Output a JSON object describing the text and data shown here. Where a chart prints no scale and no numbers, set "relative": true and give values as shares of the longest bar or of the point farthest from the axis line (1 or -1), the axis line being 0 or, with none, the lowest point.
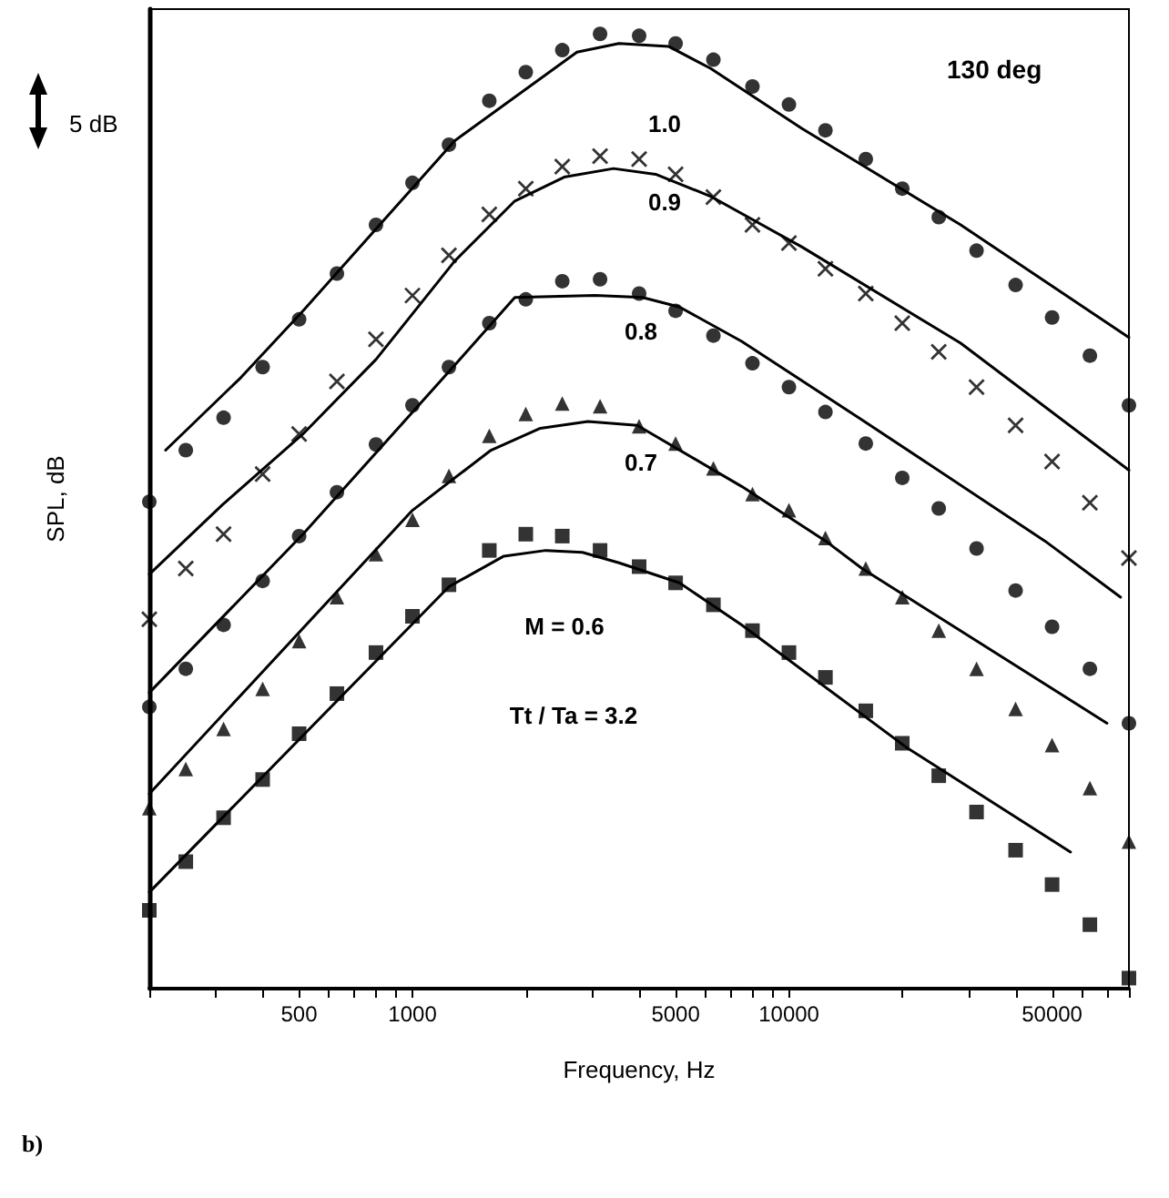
{
  "chart_data": {
    "type": "scatter",
    "xlabel": "Frequency, Hz",
    "ylabel": "SPL, dB",
    "log": "x",
    "relative": true,
    "xlim": [
      200,
      80000
    ],
    "xticks": [
      {
        "value": 200,
        "label": null
      },
      {
        "value": 300,
        "label": null
      },
      {
        "value": 400,
        "label": null
      },
      500,
      {
        "value": 600,
        "label": null
      },
      {
        "value": 700,
        "label": null
      },
      {
        "value": 800,
        "label": null
      },
      {
        "value": 900,
        "label": null
      },
      1000,
      {
        "value": 2000,
        "label": null
      },
      {
        "value": 3000,
        "label": null
      },
      {
        "value": 4000,
        "label": null
      },
      5000,
      {
        "value": 6000,
        "label": null
      },
      {
        "value": 7000,
        "label": null
      },
      {
        "value": 8000,
        "label": null
      },
      {
        "value": 9000,
        "label": null
      },
      10000,
      {
        "value": 20000,
        "label": null
      },
      {
        "value": 30000,
        "label": null
      },
      {
        "value": 40000,
        "label": null
      },
      50000,
      {
        "value": 60000,
        "label": null
      },
      {
        "value": 70000,
        "label": null
      },
      {
        "value": 80000,
        "label": null
      }
    ],
    "x": [
      200,
      250,
      315,
      400,
      500,
      630,
      800,
      1000,
      1250,
      1600,
      2000,
      2500,
      3150,
      4000,
      5000,
      6300,
      8000,
      10000,
      12500,
      16000,
      20000,
      25000,
      31500,
      40000,
      50000,
      63000,
      80000
    ],
    "series": [
      {
        "marker": "circle",
        "color": "#000000",
        "values": [
          0.51,
          0.564,
          0.598,
          0.651,
          0.701,
          0.749,
          0.8,
          0.844,
          0.884,
          0.93,
          0.96,
          0.983,
          1.0,
          0.998,
          0.99,
          0.973,
          0.945,
          0.926,
          0.899,
          0.869,
          0.838,
          0.808,
          0.773,
          0.737,
          0.703,
          0.663,
          0.611
        ]
      },
      {
        "marker": "cross",
        "color": "#000000",
        "values": [
          0.387,
          0.44,
          0.476,
          0.539,
          0.581,
          0.636,
          0.68,
          0.726,
          0.768,
          0.811,
          0.838,
          0.861,
          0.872,
          0.869,
          0.853,
          0.829,
          0.8,
          0.781,
          0.754,
          0.728,
          0.697,
          0.667,
          0.63,
          0.59,
          0.552,
          0.509,
          0.451
        ]
      },
      {
        "marker": "circle",
        "color": "#000000",
        "values": [
          0.295,
          0.335,
          0.381,
          0.427,
          0.474,
          0.52,
          0.57,
          0.611,
          0.651,
          0.697,
          0.722,
          0.741,
          0.743,
          0.728,
          0.71,
          0.684,
          0.655,
          0.63,
          0.604,
          0.571,
          0.535,
          0.503,
          0.461,
          0.417,
          0.379,
          0.335,
          0.278
        ]
      },
      {
        "marker": "triangle",
        "color": "#000000",
        "values": [
          0.189,
          0.23,
          0.272,
          0.314,
          0.364,
          0.41,
          0.455,
          0.491,
          0.537,
          0.579,
          0.602,
          0.613,
          0.61,
          0.589,
          0.571,
          0.545,
          0.518,
          0.501,
          0.472,
          0.44,
          0.41,
          0.375,
          0.335,
          0.293,
          0.255,
          0.21,
          0.154
        ]
      },
      {
        "marker": "square",
        "color": "#000000",
        "values": [
          0.082,
          0.133,
          0.179,
          0.219,
          0.267,
          0.309,
          0.352,
          0.39,
          0.423,
          0.459,
          0.476,
          0.474,
          0.459,
          0.442,
          0.425,
          0.402,
          0.375,
          0.352,
          0.326,
          0.291,
          0.257,
          0.223,
          0.185,
          0.145,
          0.109,
          0.067,
          0.011
        ]
      },
      {
        "type": "line",
        "marker": "none",
        "line_style": "solid",
        "color": "#000000",
        "x": [
          221,
          350,
          512,
          1294,
          2735,
          3536,
          4786,
          6185,
          10810,
          28590,
          80000
        ],
        "values": [
          0.564,
          0.64,
          0.71,
          0.888,
          0.981,
          0.99,
          0.987,
          0.964,
          0.901,
          0.8,
          0.682
        ]
      },
      {
        "type": "line",
        "marker": "none",
        "line_style": "solid",
        "color": "#000000",
        "x": [
          200,
          313,
          512,
          800,
          1294,
          1870,
          2529,
          3420,
          4424,
          6185,
          10810,
          28590,
          80000
        ],
        "values": [
          0.434,
          0.507,
          0.581,
          0.659,
          0.762,
          0.825,
          0.85,
          0.859,
          0.853,
          0.83,
          0.777,
          0.676,
          0.543
        ]
      },
      {
        "type": "line",
        "marker": "none",
        "line_style": "solid",
        "color": "#000000",
        "x": [
          200,
          512,
          1294,
          1870,
          3060,
          4086,
          5120,
          7490,
          15600,
          47800,
          76000
        ],
        "values": [
          0.31,
          0.476,
          0.653,
          0.724,
          0.726,
          0.724,
          0.714,
          0.678,
          0.596,
          0.469,
          0.41
        ]
      },
      {
        "type": "line",
        "marker": "none",
        "line_style": "solid",
        "color": "#000000",
        "x": [
          200,
          1000,
          1617,
          2187,
          2924,
          3954,
          7490,
          12500,
          15640,
          69950
        ],
        "values": [
          0.204,
          0.501,
          0.564,
          0.587,
          0.594,
          0.59,
          0.526,
          0.469,
          0.44,
          0.278
        ]
      },
      {
        "type": "line",
        "marker": "none",
        "line_style": "solid",
        "color": "#000000",
        "x": [
          200,
          1250,
          1749,
          2261,
          2827,
          3536,
          5120,
          7490,
          20460,
          55960
        ],
        "values": [
          0.101,
          0.421,
          0.453,
          0.459,
          0.457,
          0.446,
          0.425,
          0.381,
          0.253,
          0.143
        ]
      }
    ],
    "annotations": [
      "1.0",
      "0.9",
      "0.8",
      "0.7",
      "M = 0.6",
      "Tt / Ta = 3.2",
      "130 deg",
      "5 dB",
      "b)"
    ]
  }
}
